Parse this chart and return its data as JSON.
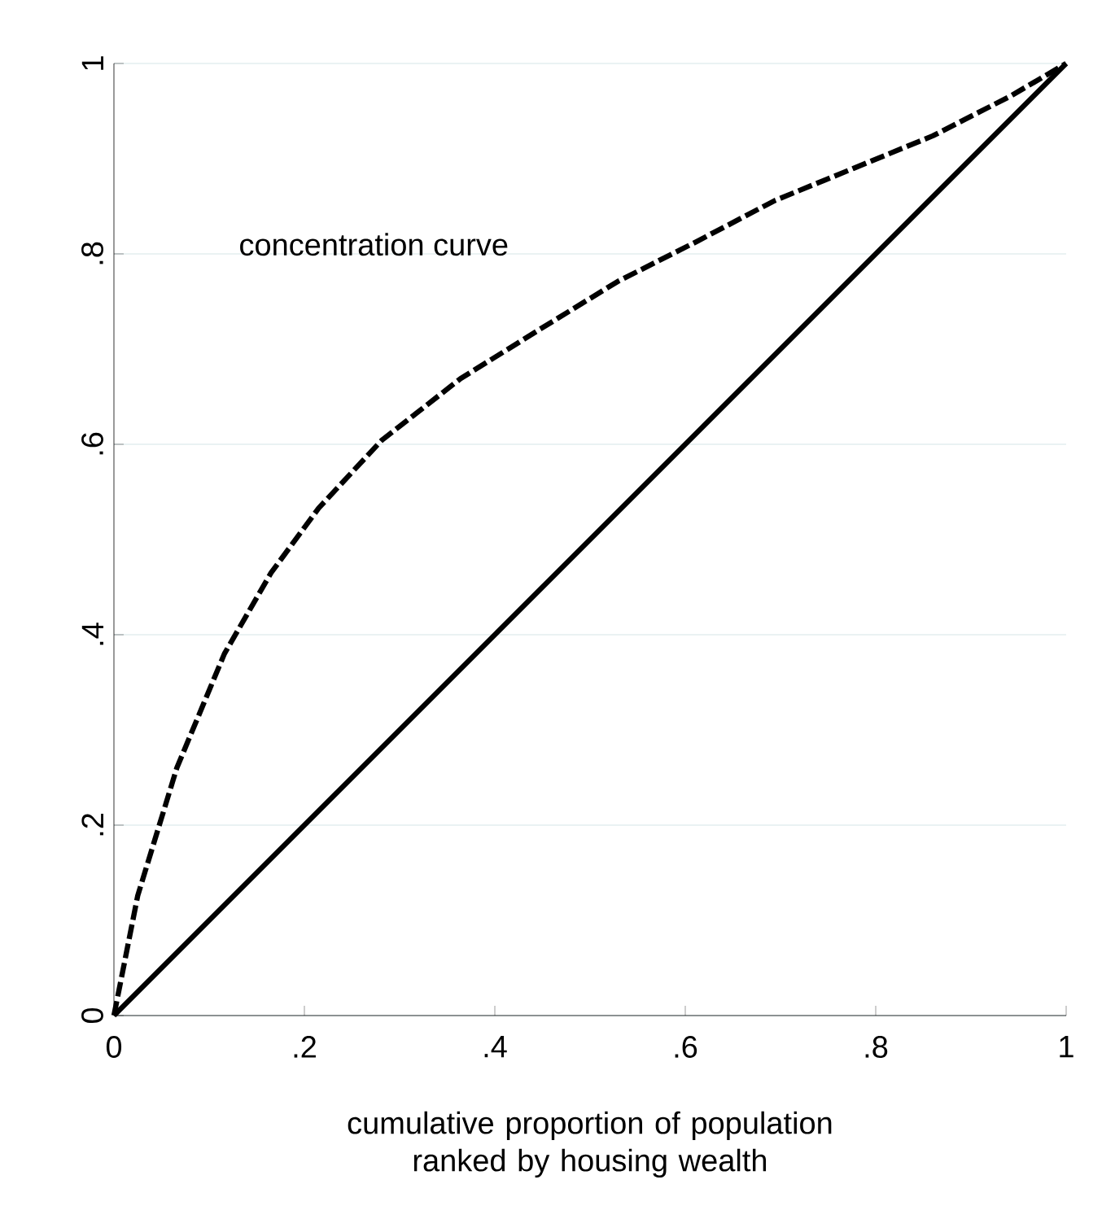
{
  "chart_data": {
    "type": "line",
    "xlabel": "cumulative proportion of population ranked by housing wealth",
    "annotations": [
      "concentration curve"
    ],
    "xlim": [
      0,
      1
    ],
    "ylim": [
      0,
      1
    ],
    "xticks": [
      0,
      {
        "value": 0.2,
        "label": ".2"
      },
      {
        "value": 0.4,
        "label": ".4"
      },
      {
        "value": 0.6,
        "label": ".6"
      },
      {
        "value": 0.8,
        "label": ".8"
      },
      1
    ],
    "yticks": [
      0,
      {
        "value": 0.2,
        "label": ".2"
      },
      {
        "value": 0.4,
        "label": ".4"
      },
      {
        "value": 0.6,
        "label": ".6"
      },
      {
        "value": 0.8,
        "label": ".8"
      },
      1
    ],
    "grid": "y",
    "marker": "none",
    "series": [
      {
        "color": "#000000",
        "line_style": "dashed",
        "x": [
          0,
          0.025,
          0.066,
          0.116,
          0.165,
          0.215,
          0.281,
          0.364,
          0.446,
          0.529,
          0.612,
          0.694,
          0.777,
          0.86,
          0.942,
          1
        ],
        "values": [
          0,
          0.126,
          0.26,
          0.38,
          0.465,
          0.533,
          0.604,
          0.669,
          0.72,
          0.771,
          0.813,
          0.856,
          0.89,
          0.924,
          0.966,
          1
        ]
      },
      {
        "color": "#000000",
        "line_style": "solid",
        "x": [
          0,
          1
        ],
        "values": [
          0,
          1
        ]
      }
    ]
  }
}
